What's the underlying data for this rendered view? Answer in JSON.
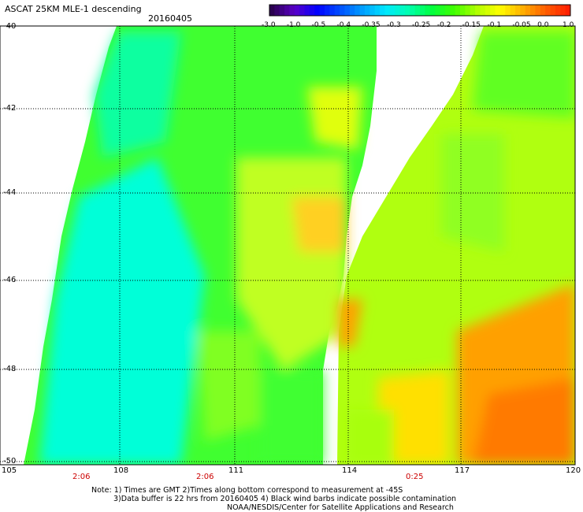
{
  "header": {
    "title": "ASCAT 25KM MLE-1 descending",
    "date": "20160405"
  },
  "colorbar": {
    "labels": [
      "-3.0",
      "-1.0",
      "-0.5",
      "-0.4",
      "-0.35",
      "-0.3",
      "-0.25",
      "-0.2",
      "-0.15",
      "-0.1",
      "-0.05",
      "0.0",
      "1.0"
    ],
    "colors": [
      "#2a0050",
      "#5a00c8",
      "#0000ff",
      "#0050ff",
      "#00a0ff",
      "#00e8ff",
      "#00ffb0",
      "#00ff40",
      "#40ff00",
      "#b0ff00",
      "#ffff00",
      "#ffb000",
      "#ff6000",
      "#ff2000"
    ]
  },
  "axes": {
    "lat_labels": [
      "-40",
      "-42",
      "-44",
      "-46",
      "-48",
      "-50"
    ],
    "lon_labels": [
      "105",
      "108",
      "111",
      "114",
      "117",
      "120"
    ],
    "times": [
      "2:06",
      "2:06",
      "0:25"
    ]
  },
  "notes": {
    "line1": "Note: 1) Times are GMT 2)Times along bottom correspond to measurement at -45S",
    "line2": "3)Data buffer is 22 hrs from 20160405 4) Black wind barbs indicate possible contamination",
    "line3": "NOAA/NESDIS/Center for Satellite Applications and Research"
  }
}
